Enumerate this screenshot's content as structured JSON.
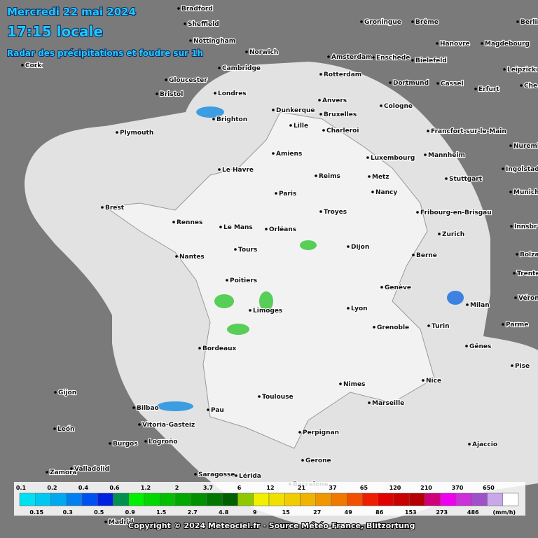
{
  "header": {
    "date": "Mercredi 22 mai 2024",
    "time": "17:15 locale",
    "subtitle": "Radar des précipitations et foudre sur 1h"
  },
  "cities": [
    "Bradford",
    "Sheffield",
    "Nottingham",
    "Norwich",
    "Cork",
    "Cambridge",
    "Gloucester",
    "Bristol",
    "Londres",
    "Brighton",
    "Plymouth",
    "Groningue",
    "Brême",
    "Berlin",
    "Hanovre",
    "Magdebourg",
    "Amsterdam",
    "Enschede",
    "Bielefeld",
    "Leipzick",
    "Rotterdam",
    "Dortmund",
    "Cassel",
    "Erfurt",
    "Che",
    "Anvers",
    "Cologne",
    "Dunkerque",
    "Bruxelles",
    "Lille",
    "Charleroi",
    "Francfort-sur-le-Main",
    "Nuremberg",
    "Amiens",
    "Luxembourg",
    "Mannheim",
    "Ingolstadt",
    "Le Havre",
    "Reims",
    "Metz",
    "Stuttgart",
    "Paris",
    "Nancy",
    "Munich",
    "Brest",
    "Troyes",
    "Fribourg-en-Brisgau",
    "Rennes",
    "Le Mans",
    "Orléans",
    "Zurich",
    "Innsbr",
    "Tours",
    "Dijon",
    "Bolza",
    "Nantes",
    "Berne",
    "Trente",
    "Poitiers",
    "Genève",
    "Vérone",
    "Limoges",
    "Lyon",
    "Milan",
    "Parme",
    "Grenoble",
    "Turin",
    "Bordeaux",
    "Gênes",
    "Pise",
    "Nice",
    "Nimes",
    "Gijon",
    "Marseille",
    "Toulouse",
    "Bilbao",
    "Pau",
    "Vitoria-Gasteiz",
    "León",
    "Perpignan",
    "Burgos",
    "Logroño",
    "Ajaccio",
    "Zamora",
    "Valladolid",
    "Gerone",
    "Saragosse",
    "Lérida",
    "Barcelone",
    "Madrid"
  ],
  "legend": {
    "top_labels": [
      "0.1",
      "0.2",
      "0.4",
      "0.6",
      "1.2",
      "2",
      "3.7",
      "6",
      "12",
      "21",
      "37",
      "65",
      "120",
      "210",
      "370",
      "650"
    ],
    "bottom_labels": [
      "0.15",
      "0.3",
      "0.5",
      "0.9",
      "1.5",
      "2.7",
      "4.8",
      "9",
      "15",
      "27",
      "49",
      "86",
      "153",
      "273",
      "486",
      "(mm/h)"
    ]
  },
  "footer": {
    "copyright": "Copyright © 2024  Meteociel.fr  -  Source Météo-France, Blitzortung"
  }
}
